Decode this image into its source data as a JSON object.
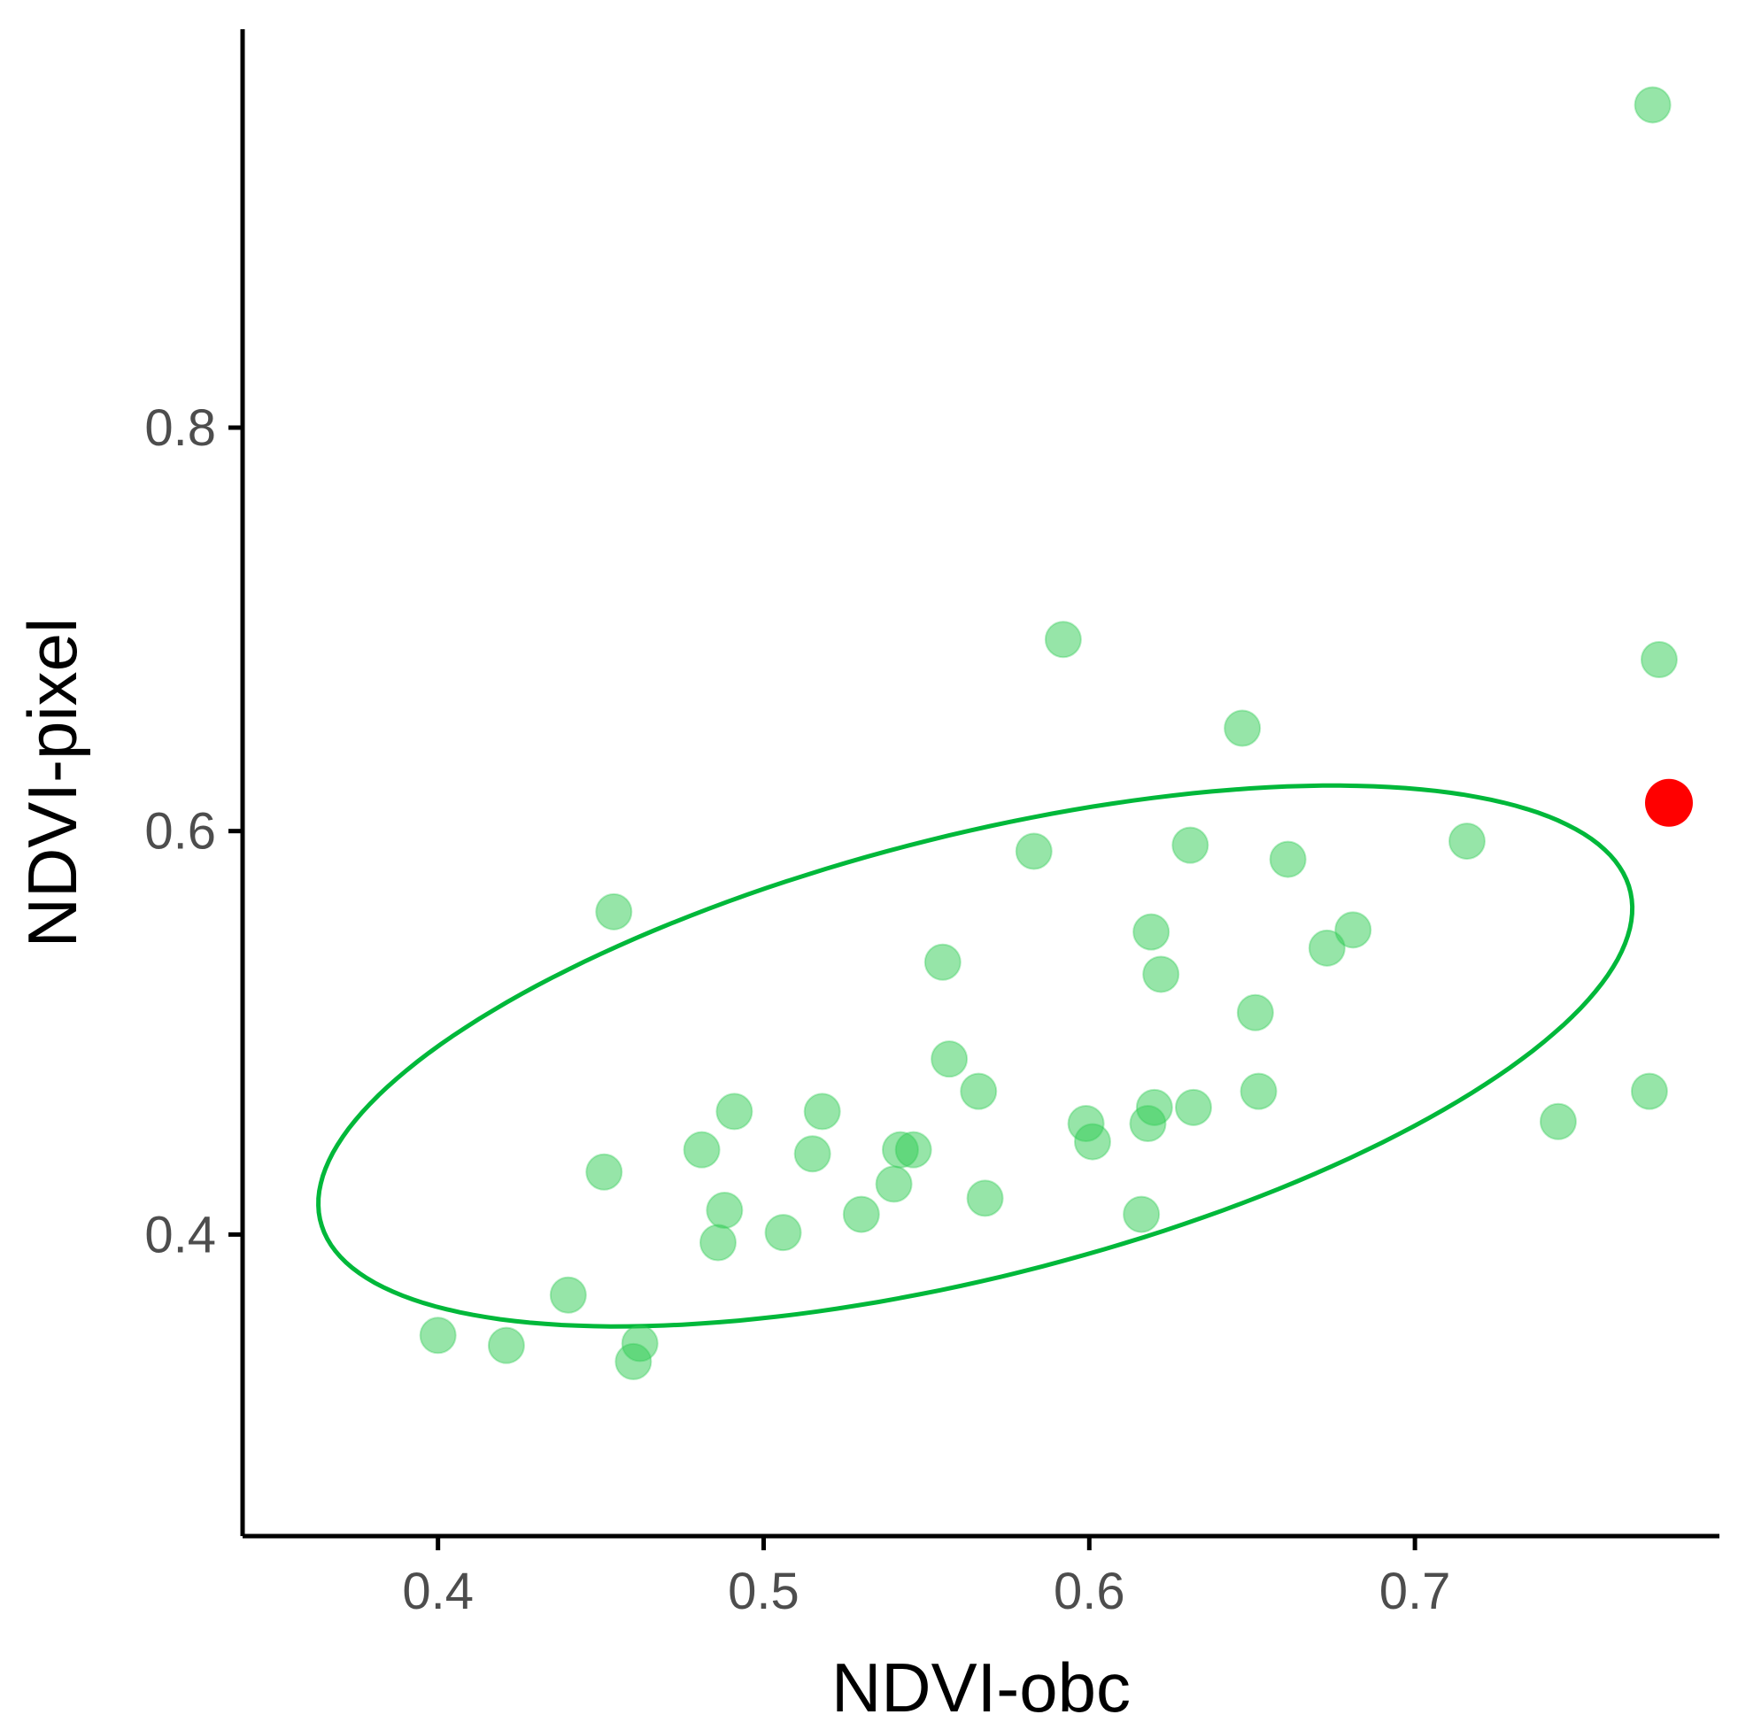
{
  "chart_data": {
    "type": "scatter",
    "title": "",
    "xlabel": "NDVI-obc",
    "ylabel": "NDVI-pixel",
    "xlim": [
      0.34,
      0.7935
    ],
    "ylim": [
      0.2505,
      0.9975
    ],
    "x_ticks": [
      0.4,
      0.5,
      0.6,
      0.7
    ],
    "x_tick_labels": [
      "0.4",
      "0.5",
      "0.6",
      "0.7"
    ],
    "y_ticks": [
      0.4,
      0.6,
      0.8
    ],
    "y_tick_labels": [
      "0.4",
      "0.6",
      "0.8"
    ],
    "grid": false,
    "series": [
      {
        "name": "points",
        "color": "#2ecc52",
        "opacity": 0.5,
        "points": [
          [
            0.4,
            0.35
          ],
          [
            0.421,
            0.345
          ],
          [
            0.44,
            0.37
          ],
          [
            0.451,
            0.431
          ],
          [
            0.454,
            0.56
          ],
          [
            0.46,
            0.337
          ],
          [
            0.462,
            0.346
          ],
          [
            0.481,
            0.442
          ],
          [
            0.486,
            0.396
          ],
          [
            0.488,
            0.412
          ],
          [
            0.491,
            0.461
          ],
          [
            0.506,
            0.401
          ],
          [
            0.515,
            0.44
          ],
          [
            0.518,
            0.461
          ],
          [
            0.53,
            0.41
          ],
          [
            0.54,
            0.425
          ],
          [
            0.542,
            0.442
          ],
          [
            0.546,
            0.442
          ],
          [
            0.555,
            0.535
          ],
          [
            0.557,
            0.487
          ],
          [
            0.566,
            0.471
          ],
          [
            0.568,
            0.418
          ],
          [
            0.583,
            0.59
          ],
          [
            0.592,
            0.695
          ],
          [
            0.599,
            0.455
          ],
          [
            0.601,
            0.446
          ],
          [
            0.616,
            0.41
          ],
          [
            0.618,
            0.455
          ],
          [
            0.619,
            0.55
          ],
          [
            0.62,
            0.463
          ],
          [
            0.622,
            0.529
          ],
          [
            0.631,
            0.593
          ],
          [
            0.632,
            0.463
          ],
          [
            0.647,
            0.651
          ],
          [
            0.651,
            0.51
          ],
          [
            0.652,
            0.471
          ],
          [
            0.661,
            0.586
          ],
          [
            0.673,
            0.542
          ],
          [
            0.681,
            0.551
          ],
          [
            0.716,
            0.595
          ],
          [
            0.744,
            0.456
          ],
          [
            0.772,
            0.471
          ],
          [
            0.773,
            0.96
          ],
          [
            0.775,
            0.685
          ]
        ]
      },
      {
        "name": "highlighted",
        "color": "#ff0000",
        "opacity": 1.0,
        "points": [
          [
            0.778,
            0.614
          ]
        ]
      }
    ],
    "ellipse": {
      "color": "#00b83a",
      "center": [
        0.565,
        0.4885
      ],
      "semi_major": 0.219,
      "semi_minor": 0.1035,
      "angle_deg": 26.2
    }
  }
}
